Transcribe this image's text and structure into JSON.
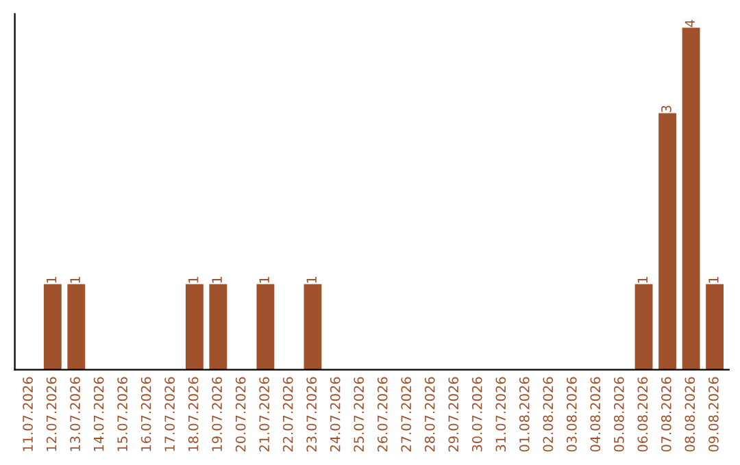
{
  "chart_data": {
    "type": "bar",
    "categories": [
      "11.07.2026",
      "12.07.2026",
      "13.07.2026",
      "14.07.2026",
      "15.07.2026",
      "16.07.2026",
      "17.07.2026",
      "18.07.2026",
      "19.07.2026",
      "20.07.2026",
      "21.07.2026",
      "22.07.2026",
      "23.07.2026",
      "24.07.2026",
      "25.07.2026",
      "26.07.2026",
      "27.07.2026",
      "28.07.2026",
      "29.07.2026",
      "30.07.2026",
      "31.07.2026",
      "01.08.2026",
      "02.08.2026",
      "03.08.2026",
      "04.08.2026",
      "05.08.2026",
      "06.08.2026",
      "07.08.2026",
      "08.08.2026",
      "09.08.2026"
    ],
    "values": [
      0,
      1,
      1,
      0,
      0,
      0,
      0,
      1,
      1,
      0,
      1,
      0,
      1,
      0,
      0,
      0,
      0,
      0,
      0,
      0,
      0,
      0,
      0,
      0,
      0,
      0,
      1,
      3,
      4,
      1
    ],
    "value_labels": [
      null,
      "1",
      "1",
      null,
      null,
      null,
      null,
      "1",
      "1",
      null,
      "1",
      null,
      "1",
      null,
      null,
      null,
      null,
      null,
      null,
      null,
      null,
      null,
      null,
      null,
      null,
      null,
      "1",
      "3",
      "4",
      "1"
    ],
    "color": "#a0522d",
    "tick_labels": "x",
    "grid": false,
    "legend": false
  }
}
